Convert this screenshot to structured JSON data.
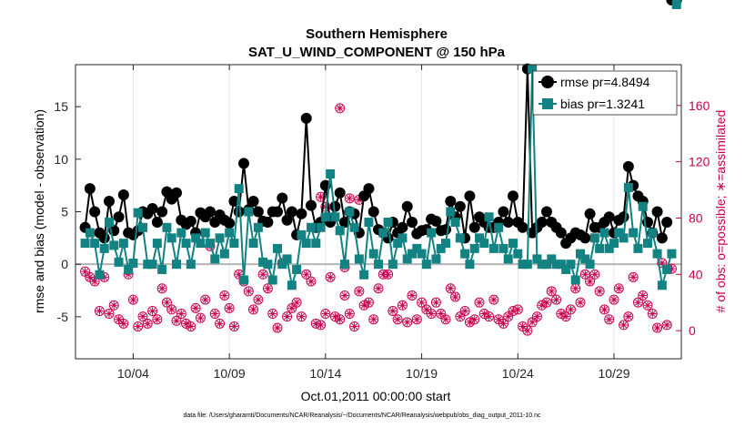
{
  "chart_data": {
    "type": "line",
    "title_line1": "Southern Hemisphere",
    "title_line2": "SAT_U_WIND_COMPONENT @ 150 hPa",
    "xlabel": "Oct.01,2011 00:00:00 start",
    "ylabel_left": "rmse and bias (model - observation)",
    "ylabel_right": "# of obs: o=possible; ∗=assimilated",
    "footnote": "data file: /Users/gharamti/Documents/NCAR/Reanalysis/~/Documents/NCAR/Reanalysis/webpub/obs_diag_output_2011-10.nc",
    "x_tick_labels": [
      "10/04",
      "10/09",
      "10/14",
      "10/19",
      "10/24",
      "10/29"
    ],
    "x_tick_days": [
      4,
      9,
      14,
      19,
      24,
      29
    ],
    "xlim_days": [
      1,
      32.5
    ],
    "ylim_left": [
      -9,
      19
    ],
    "ylim_right": [
      -20,
      189
    ],
    "y_ticks_left": [
      -5,
      0,
      5,
      10,
      15
    ],
    "y_ticks_right": [
      0,
      40,
      80,
      120,
      160
    ],
    "zero_line": 0,
    "x_days": [
      1.5,
      1.75,
      2.0,
      2.25,
      2.5,
      2.75,
      3.0,
      3.25,
      3.5,
      3.75,
      4.0,
      4.25,
      4.5,
      4.75,
      5.0,
      5.25,
      5.5,
      5.75,
      6.0,
      6.25,
      6.5,
      6.75,
      7.0,
      7.25,
      7.5,
      7.75,
      8.0,
      8.25,
      8.5,
      8.75,
      9.0,
      9.25,
      9.5,
      9.75,
      10.0,
      10.25,
      10.5,
      10.75,
      11.0,
      11.25,
      11.5,
      11.75,
      12.0,
      12.25,
      12.5,
      12.75,
      13.0,
      13.25,
      13.5,
      13.75,
      14.0,
      14.25,
      14.5,
      14.75,
      15.0,
      15.25,
      15.5,
      15.75,
      16.0,
      16.25,
      16.5,
      16.75,
      17.0,
      17.25,
      17.5,
      17.75,
      18.0,
      18.25,
      18.5,
      18.75,
      19.0,
      19.25,
      19.5,
      19.75,
      20.0,
      20.25,
      20.5,
      20.75,
      21.0,
      21.25,
      21.5,
      21.75,
      22.0,
      22.25,
      22.5,
      22.75,
      23.0,
      23.25,
      23.5,
      23.75,
      24.0,
      24.25,
      24.5,
      24.75,
      25.0,
      25.25,
      25.5,
      25.75,
      26.0,
      26.25,
      26.5,
      26.75,
      27.0,
      27.25,
      27.5,
      27.75,
      28.0,
      28.25,
      28.5,
      28.75,
      29.0,
      29.25,
      29.5,
      29.75,
      30.0,
      30.25,
      30.5,
      30.75,
      31.0,
      31.25,
      31.5,
      31.75,
      32.0,
      32.25
    ],
    "series": [
      {
        "name": "rmse",
        "legend_label": "rmse pr=4.8494",
        "color": "#000000",
        "values": [
          3.5,
          7.2,
          5.0,
          3.0,
          2.5,
          6.0,
          3.2,
          4.5,
          6.6,
          3.0,
          2.8,
          3.2,
          5.0,
          4.8,
          5.3,
          4.0,
          5.0,
          6.9,
          6.2,
          6.8,
          4.2,
          3.8,
          4.1,
          3.0,
          4.9,
          4.5,
          5.0,
          4.0,
          4.7,
          4.2,
          3.9,
          6.0,
          5.0,
          9.6,
          5.2,
          6.0,
          5.0,
          4.1,
          4.0,
          5.0,
          5.0,
          6.3,
          4.2,
          5.0,
          2.8,
          4.8,
          13.9,
          5.6,
          3.5,
          4.0,
          7.5,
          4.0,
          5.5,
          6.8,
          4.0,
          5.0,
          4.8,
          3.0,
          6.5,
          7.2,
          5.0,
          3.3,
          3.0,
          2.5,
          4.0,
          3.0,
          3.5,
          5.5,
          4.0,
          2.9,
          3.2,
          3.3,
          4.3,
          4.1,
          3.2,
          3.3,
          6.0,
          4.5,
          5.5,
          2.5,
          6.5,
          3.5,
          4.5,
          4.0,
          3.5,
          3.5,
          4.0,
          5.0,
          4.0,
          6.5,
          4.0,
          3.5,
          18.6,
          3.0,
          3.5,
          4.0,
          5.0,
          4.0,
          3.5,
          3.0,
          2.0,
          2.5,
          3.0,
          2.8,
          2.5,
          4.8,
          3.5,
          3.5,
          4.0,
          4.5,
          3.0,
          4.2,
          4.5,
          9.3,
          7.5,
          6.5,
          6.0,
          4.0,
          3.0,
          5.0,
          2.5,
          4.0
        ]
      },
      {
        "name": "bias",
        "legend_label": "bias pr=1.3241",
        "color": "#128282",
        "values": [
          2.0,
          3.0,
          2.0,
          -1.0,
          1.5,
          4.0,
          1.8,
          0.2,
          2.0,
          -0.5,
          0.1,
          4.9,
          3.5,
          0.0,
          0.0,
          2.0,
          -0.5,
          3.5,
          2.5,
          0.0,
          3.0,
          2.0,
          0.0,
          2.5,
          2.0,
          3.0,
          2.0,
          0.5,
          2.5,
          1.0,
          3.0,
          2.0,
          7.2,
          -1.5,
          5.0,
          2.0,
          3.5,
          0.2,
          0.0,
          -1.5,
          1.5,
          0.0,
          0.5,
          -2.0,
          -0.5,
          2.8,
          2.0,
          3.5,
          2.0,
          3.5,
          4.5,
          8.6,
          4.5,
          3.2,
          0.0,
          5.0,
          3.5,
          0.5,
          -1.0,
          4.0,
          1.0,
          0.0,
          3.0,
          4.0,
          0.0,
          2.0,
          2.5,
          0.5,
          1.0,
          1.5,
          1.0,
          0.0,
          3.0,
          0.5,
          1.5,
          2.0,
          5.0,
          4.0,
          2.5,
          1.0,
          0.0,
          1.5,
          2.5,
          2.0,
          4.5,
          1.5,
          3.5,
          1.5,
          0.5,
          2.0,
          1.0,
          0.0,
          0.0,
          18.6,
          0.5,
          0.0,
          0.0,
          0.5,
          0.0,
          0.0,
          -0.5,
          0.0,
          -1.5,
          1.0,
          0.5,
          0.0,
          2.5,
          1.5,
          3.0,
          1.5,
          2.0,
          3.0,
          2.5,
          7.3,
          3.0,
          1.5,
          5.5,
          2.0,
          3.0,
          1.0,
          -2.0,
          -0.5,
          1.0
        ]
      },
      {
        "name": "possible",
        "marker": "circle",
        "axis": "right",
        "color": "#c8004f",
        "values": [
          42,
          38,
          35,
          14,
          38,
          12,
          18,
          8,
          5,
          40,
          22,
          3,
          10,
          5,
          14,
          8,
          30,
          20,
          15,
          7,
          12,
          5,
          3,
          16,
          9,
          22,
          60,
          12,
          5,
          25,
          16,
          3,
          40,
          35,
          28,
          15,
          22,
          40,
          30,
          12,
          2,
          48,
          10,
          16,
          20,
          10,
          40,
          35,
          5,
          4,
          12,
          38,
          10,
          8,
          45,
          12,
          3,
          28,
          18,
          20,
          8,
          30,
          40,
          40,
          14,
          8,
          18,
          6,
          25,
          8,
          20,
          15,
          12,
          20,
          12,
          8,
          30,
          24,
          10,
          14,
          6,
          8,
          20,
          12,
          10,
          22,
          8,
          5,
          10,
          14,
          15,
          3,
          0,
          6,
          10,
          18,
          20,
          28,
          22,
          12,
          10,
          15,
          30,
          20,
          40,
          35,
          40,
          28,
          15,
          8,
          22,
          30,
          4,
          10,
          38,
          20,
          25,
          18,
          12,
          2,
          48,
          4,
          44
        ]
      },
      {
        "name": "assimilated",
        "marker": "asterisk",
        "axis": "right",
        "color": "#c8004f",
        "values": [
          42,
          38,
          35,
          14,
          38,
          12,
          18,
          8,
          5,
          40,
          22,
          3,
          10,
          5,
          14,
          8,
          30,
          20,
          15,
          7,
          12,
          5,
          3,
          16,
          9,
          22,
          60,
          12,
          5,
          25,
          16,
          3,
          40,
          35,
          28,
          15,
          22,
          40,
          30,
          12,
          2,
          48,
          10,
          16,
          20,
          10,
          40,
          35,
          5,
          4,
          12,
          38,
          10,
          8,
          45,
          12,
          3,
          28,
          18,
          20,
          8,
          30,
          40,
          40,
          14,
          8,
          18,
          6,
          25,
          8,
          20,
          15,
          12,
          20,
          12,
          8,
          30,
          24,
          10,
          14,
          6,
          8,
          20,
          12,
          10,
          22,
          8,
          5,
          10,
          14,
          15,
          3,
          0,
          6,
          10,
          18,
          20,
          28,
          22,
          12,
          10,
          15,
          30,
          20,
          40,
          35,
          40,
          28,
          15,
          8,
          22,
          30,
          4,
          10,
          38,
          20,
          25,
          18,
          12,
          2,
          48,
          4,
          44
        ]
      }
    ],
    "outlier_points": [
      {
        "x_day": 13.75,
        "value": 95,
        "axis": "right"
      },
      {
        "x_day": 14.75,
        "value": 158,
        "axis": "right"
      },
      {
        "x_day": 15.25,
        "value": 94,
        "axis": "right"
      },
      {
        "x_day": 15.75,
        "value": 93,
        "axis": "right"
      },
      {
        "x_day": 14.0,
        "value": 88,
        "axis": "right"
      },
      {
        "x_day": 14.25,
        "value": 80,
        "axis": "right"
      },
      {
        "x_day": 15.0,
        "value": 25,
        "axis": "right"
      }
    ]
  }
}
